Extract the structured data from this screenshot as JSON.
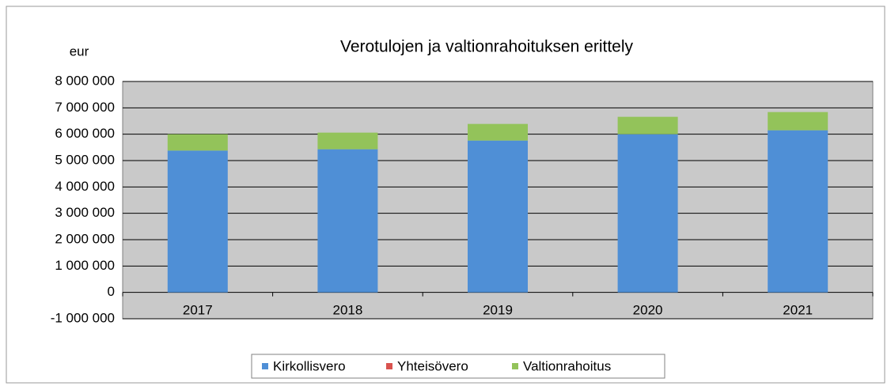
{
  "chart_data": {
    "type": "stacked_bar",
    "title": "Verotulojen ja valtionrahoituksen erittely",
    "y_label": "eur",
    "categories": [
      "2017",
      "2018",
      "2019",
      "2020",
      "2021"
    ],
    "series": [
      {
        "name": "Kirkollisvero",
        "color": "#4f8fd6",
        "values": [
          5380000,
          5430000,
          5760000,
          6000000,
          6150000
        ]
      },
      {
        "name": "Yhteisövero",
        "color": "#d9534f",
        "values": [
          0,
          0,
          0,
          0,
          0
        ]
      },
      {
        "name": "Valtionrahoitus",
        "color": "#93c35a",
        "values": [
          620000,
          630000,
          630000,
          660000,
          690000
        ]
      }
    ],
    "ylim": [
      -1000000,
      8000000
    ],
    "yticks": [
      {
        "value": -1000000,
        "label": "-1 000 000"
      },
      0,
      {
        "value": 1000000,
        "label": "1 000 000"
      },
      {
        "value": 2000000,
        "label": "2 000 000"
      },
      {
        "value": 3000000,
        "label": "3 000 000"
      },
      {
        "value": 4000000,
        "label": "4 000 000"
      },
      {
        "value": 5000000,
        "label": "5 000 000"
      },
      {
        "value": 6000000,
        "label": "6 000 000"
      },
      {
        "value": 7000000,
        "label": "7 000 000"
      },
      {
        "value": 8000000,
        "label": "8 000 000"
      }
    ],
    "grid": true,
    "legend": "bottom"
  }
}
